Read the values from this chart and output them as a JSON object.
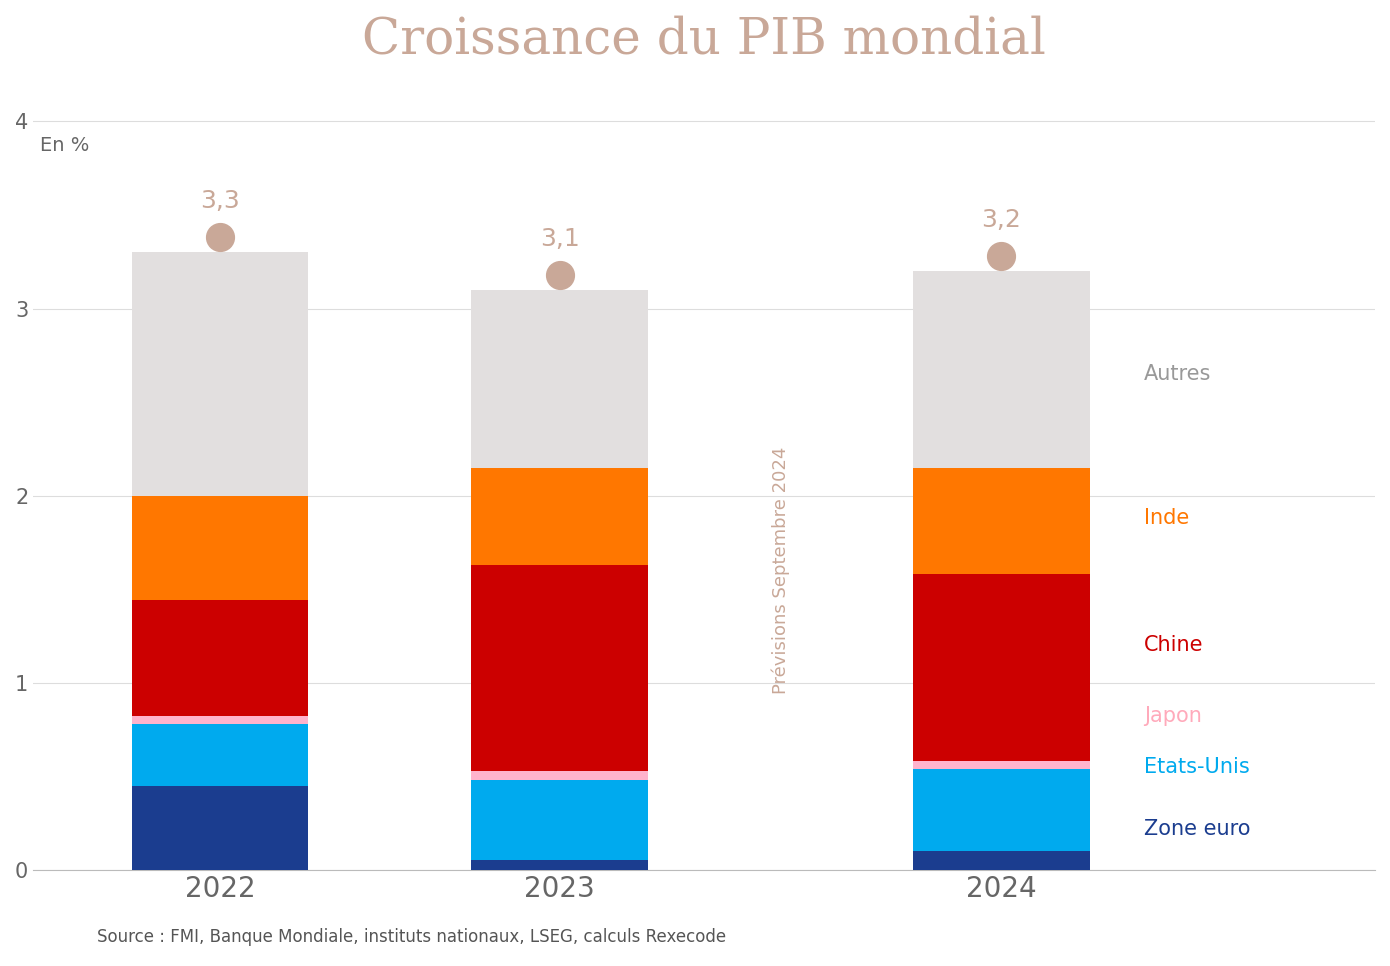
{
  "title": "Croissance du PIB mondial",
  "source": "Source : FMI, Banque Mondiale, instituts nationaux, LSEG, calculs Rexecode",
  "prevision_label": "Prévisions Septembre 2024",
  "years": [
    "2022",
    "2023",
    "2024"
  ],
  "totals": [
    3.3,
    3.1,
    3.2
  ],
  "totals_labels": [
    "3,3",
    "3,1",
    "3,2"
  ],
  "segments": {
    "Zone euro": [
      0.45,
      0.05,
      0.1
    ],
    "Etats-Unis": [
      0.33,
      0.43,
      0.44
    ],
    "Japon": [
      0.04,
      0.05,
      0.04
    ],
    "Chine": [
      0.62,
      1.1,
      1.0
    ],
    "Inde": [
      0.56,
      0.52,
      0.57
    ],
    "Autres": [
      1.3,
      0.95,
      1.05
    ]
  },
  "colors": {
    "Zone euro": "#1b3d8f",
    "Etats-Unis": "#00aaee",
    "Japon": "#ffb3cc",
    "Chine": "#cc0000",
    "Inde": "#ff7700",
    "Autres": "#e2dfdf"
  },
  "legend_text_colors": {
    "Autres": "#999999",
    "Inde": "#ff7700",
    "Chine": "#cc0000",
    "Japon": "#ffaabb",
    "Etats-Unis": "#00aaee",
    "Zone euro": "#1b3d8f"
  },
  "dot_color": "#c9a898",
  "ylabel": "En %",
  "ylim": [
    0,
    4.2
  ],
  "yticks": [
    0,
    1,
    2,
    3,
    4
  ],
  "bar_width": 0.52,
  "background_color": "#ffffff",
  "title_color": "#c9a898",
  "title_fontsize": 36,
  "prevision_color": "#c9a898",
  "prevision_fontsize": 13
}
